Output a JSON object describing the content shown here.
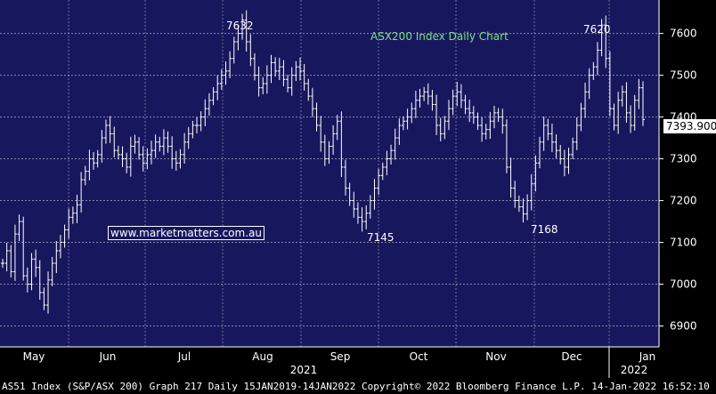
{
  "chart_data": {
    "type": "bar",
    "subtype": "ohlc",
    "title": "ASX200 Index Daily Chart",
    "ylim": [
      6850,
      7680
    ],
    "y_ticks": [
      6900,
      7000,
      7100,
      7200,
      7300,
      7400,
      7500,
      7600
    ],
    "x_month_labels": [
      "May",
      "Jun",
      "Jul",
      "Aug",
      "Sep",
      "Oct",
      "Nov",
      "Dec",
      "Jan"
    ],
    "x_year_labels": [
      "2021",
      "2022"
    ],
    "annotations": [
      "7632",
      "7145",
      "7168",
      "7620"
    ],
    "last_value": "7393.900",
    "colors": {
      "background": "#17175e",
      "bars": "#ffffff",
      "title": "#7ee07e",
      "grid": "#b8b8c8"
    },
    "grid": true,
    "series": [
      {
        "values": [
          7050,
          7080,
          7030,
          7120,
          7150,
          7020,
          7000,
          7060,
          7040,
          6980,
          6950,
          7010,
          7050,
          7080,
          7100,
          7130,
          7160,
          7170,
          7190,
          7250,
          7270,
          7300,
          7290,
          7310,
          7350,
          7380,
          7360,
          7320,
          7310,
          7300,
          7280,
          7330,
          7340,
          7310,
          7290,
          7310,
          7320,
          7340,
          7330,
          7350,
          7330,
          7300,
          7290,
          7310,
          7340,
          7360,
          7380,
          7380,
          7400,
          7420,
          7440,
          7460,
          7480,
          7500,
          7510,
          7540,
          7580,
          7600,
          7632,
          7580,
          7540,
          7500,
          7470,
          7480,
          7500,
          7530,
          7510,
          7520,
          7490,
          7470,
          7500,
          7520,
          7510,
          7480,
          7450,
          7420,
          7380,
          7340,
          7300,
          7330,
          7360,
          7390,
          7280,
          7230,
          7200,
          7180,
          7160,
          7150,
          7170,
          7200,
          7230,
          7260,
          7280,
          7300,
          7320,
          7350,
          7380,
          7390,
          7400,
          7420,
          7440,
          7450,
          7460,
          7450,
          7430,
          7380,
          7360,
          7390,
          7420,
          7450,
          7460,
          7440,
          7420,
          7410,
          7400,
          7380,
          7360,
          7370,
          7390,
          7410,
          7400,
          7380,
          7280,
          7230,
          7200,
          7185,
          7168,
          7200,
          7240,
          7290,
          7340,
          7380,
          7360,
          7340,
          7320,
          7300,
          7280,
          7310,
          7340,
          7380,
          7420,
          7460,
          7500,
          7520,
          7560,
          7620,
          7540,
          7420,
          7380,
          7440,
          7460,
          7410,
          7380,
          7440,
          7470,
          7393.9
        ]
      }
    ]
  },
  "footer": {
    "text": "AS51 Index (S&P/ASX 200) Graph 217  Daily 15JAN2019-14JAN2022  Copyright© 2022 Bloomberg Finance L.P.  14-Jan-2022 16:52:10"
  },
  "watermark": "www.marketmatters.com.au"
}
